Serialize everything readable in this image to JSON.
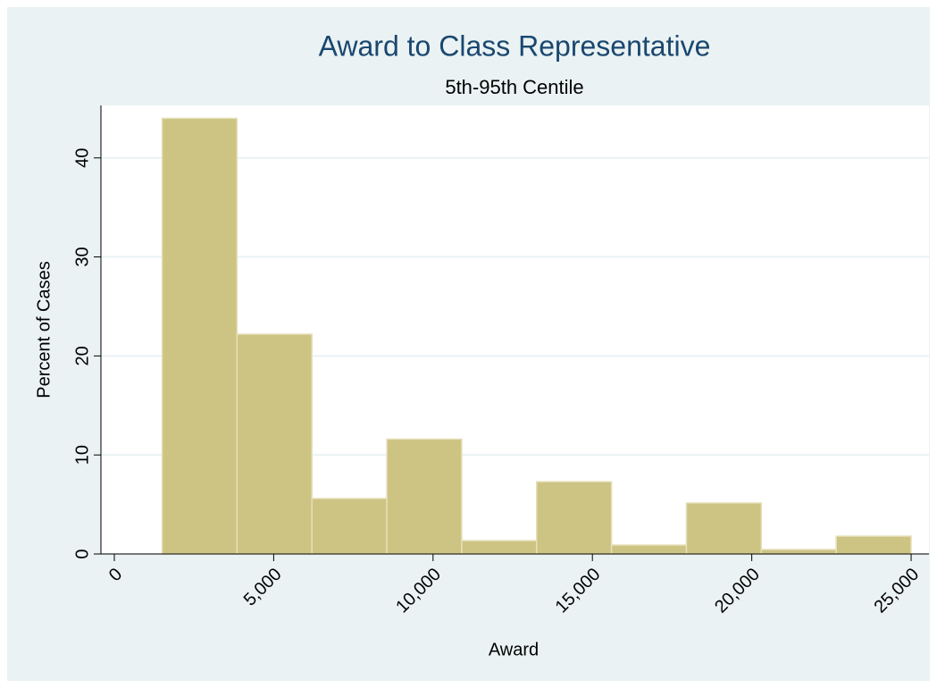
{
  "chart_data": {
    "type": "histogram",
    "title": "Award to Class Representative",
    "subtitle": "5th-95th Centile",
    "x_label": "Award",
    "y_label": "Percent of Cases",
    "bins": [
      1500,
      3850,
      6200,
      8550,
      10900,
      13250,
      15600,
      17950,
      20300,
      22650,
      25000
    ],
    "values": [
      44.0,
      22.2,
      5.6,
      11.6,
      1.35,
      7.3,
      0.9,
      5.15,
      0.45,
      1.8
    ],
    "color": "#cdc383",
    "xlim": [
      -420,
      25560
    ],
    "ylim": [
      0,
      45.3
    ],
    "xticks": [
      0,
      {
        "value": 5000,
        "label": "5,000"
      },
      {
        "value": 10000,
        "label": "10,000"
      },
      {
        "value": 15000,
        "label": "15,000"
      },
      {
        "value": 20000,
        "label": "20,000"
      },
      {
        "value": 25000,
        "label": "25,000"
      }
    ],
    "yticks": [
      0,
      10,
      20,
      30,
      40
    ],
    "grid": true
  }
}
